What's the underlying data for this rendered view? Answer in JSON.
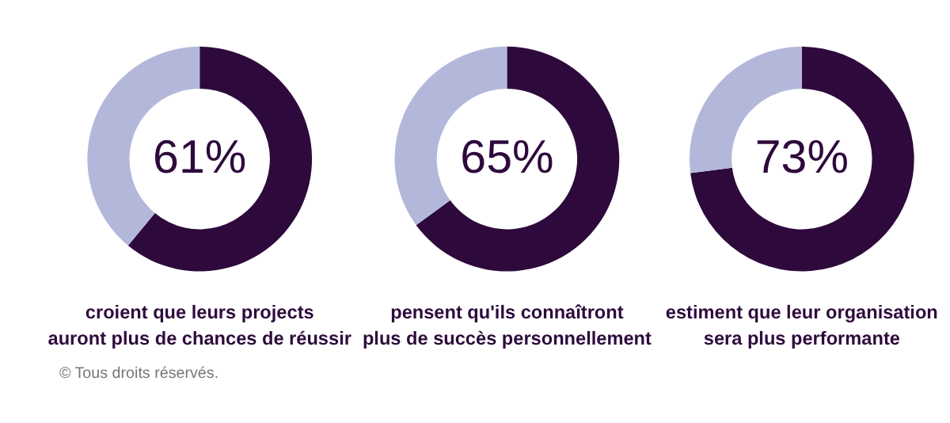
{
  "chart_data": [
    {
      "type": "donut",
      "title": "croient que leurs projects auront plus de chances de réussir",
      "categories": [
        null,
        null
      ],
      "values": [
        61,
        39
      ],
      "colors": [
        "#2e0a3c",
        "#b3b8db"
      ],
      "value_labels": [
        "61%",
        null
      ],
      "annotations": [
        "© Tous droits réservés."
      ]
    },
    {
      "type": "donut",
      "title": "pensent qu'ils connaîtront plus de succès personnellement",
      "categories": [
        null,
        null
      ],
      "values": [
        65,
        35
      ],
      "colors": [
        "#2e0a3c",
        "#b3b8db"
      ],
      "value_labels": [
        "65%",
        null
      ]
    },
    {
      "type": "donut",
      "title": "estiment que leur organisation sera plus performante",
      "categories": [
        null,
        null
      ],
      "values": [
        73,
        27
      ],
      "colors": [
        "#2e0a3c",
        "#b3b8db"
      ],
      "value_labels": [
        "73%",
        null
      ]
    }
  ]
}
